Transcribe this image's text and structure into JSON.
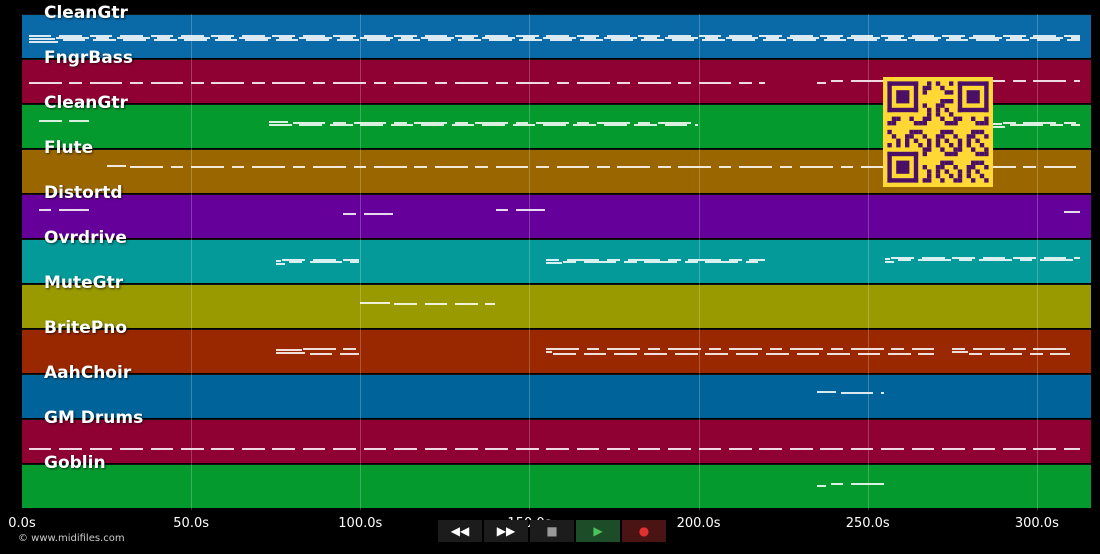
{
  "tracks": [
    {
      "name": "CleanGtr",
      "color": "#0a6aa8"
    },
    {
      "name": "FngrBass",
      "color": "#8f0033"
    },
    {
      "name": "CleanGtr",
      "color": "#059a2e"
    },
    {
      "name": "Flute",
      "color": "#9a6600"
    },
    {
      "name": "Distortd",
      "color": "#66009a"
    },
    {
      "name": "Ovrdrive",
      "color": "#049a9a"
    },
    {
      "name": "MuteGtr",
      "color": "#999900"
    },
    {
      "name": "BritePno",
      "color": "#992800"
    },
    {
      "name": "AahChoir",
      "color": "#00649a"
    },
    {
      "name": "GM Drums",
      "color": "#8f0033"
    },
    {
      "name": "Goblin",
      "color": "#059a2e"
    }
  ],
  "timeline": {
    "ticks": [
      "0.0s",
      "50.0s",
      "100.0s",
      "150.0s",
      "200.0s",
      "250.0s",
      "300.0s"
    ],
    "tick_values": [
      0,
      50,
      100,
      150,
      200,
      250,
      300
    ],
    "duration": 316
  },
  "copyright": "© www.midifiles.com",
  "transport": {
    "rewind": "◀◀",
    "forward": "▶▶",
    "stop": "■",
    "play": "▶",
    "record": "●"
  },
  "qr_label": "qr-code"
}
